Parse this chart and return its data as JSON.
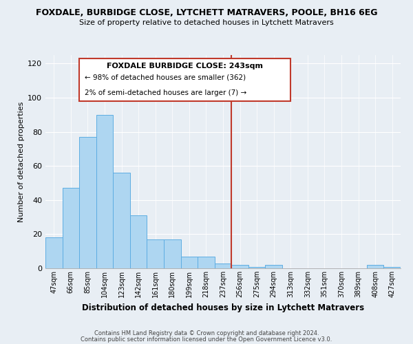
{
  "title": "FOXDALE, BURBIDGE CLOSE, LYTCHETT MATRAVERS, POOLE, BH16 6EG",
  "subtitle": "Size of property relative to detached houses in Lytchett Matravers",
  "xlabel": "Distribution of detached houses by size in Lytchett Matravers",
  "ylabel": "Number of detached properties",
  "bar_labels": [
    "47sqm",
    "66sqm",
    "85sqm",
    "104sqm",
    "123sqm",
    "142sqm",
    "161sqm",
    "180sqm",
    "199sqm",
    "218sqm",
    "237sqm",
    "256sqm",
    "275sqm",
    "294sqm",
    "313sqm",
    "332sqm",
    "351sqm",
    "370sqm",
    "389sqm",
    "408sqm",
    "427sqm"
  ],
  "bar_values": [
    18,
    47,
    77,
    90,
    56,
    31,
    17,
    17,
    7,
    7,
    3,
    2,
    1,
    2,
    0,
    0,
    0,
    0,
    0,
    2,
    1
  ],
  "bar_color": "#aed6f1",
  "bar_edge_color": "#5dade2",
  "ylim": [
    0,
    125
  ],
  "yticks": [
    0,
    20,
    40,
    60,
    80,
    100,
    120
  ],
  "marker_label": "FOXDALE BURBIDGE CLOSE: 243sqm",
  "annotation_line1": "← 98% of detached houses are smaller (362)",
  "annotation_line2": "2% of semi-detached houses are larger (7) →",
  "marker_color": "#c0392b",
  "box_color": "#ffffff",
  "box_edge_color": "#c0392b",
  "footnote1": "Contains HM Land Registry data © Crown copyright and database right 2024.",
  "footnote2": "Contains public sector information licensed under the Open Government Licence v3.0.",
  "background_color": "#e8eef4"
}
